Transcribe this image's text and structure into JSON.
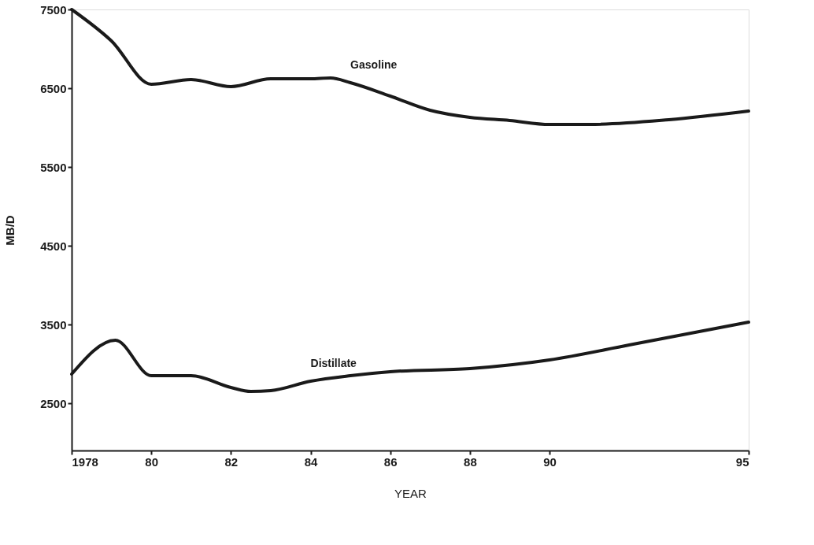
{
  "chart_data": {
    "type": "line",
    "xlabel": "YEAR",
    "ylabel": "MB/D",
    "xlim": [
      1978,
      1995
    ],
    "ylim": [
      1900,
      7500
    ],
    "xticks": [
      1978,
      {
        "value": 1980,
        "label": "80"
      },
      {
        "value": 1982,
        "label": "82"
      },
      {
        "value": 1984,
        "label": "84"
      },
      {
        "value": 1986,
        "label": "86"
      },
      {
        "value": 1988,
        "label": "88"
      },
      {
        "value": 1990,
        "label": "90"
      },
      {
        "value": 1995,
        "label": "95"
      }
    ],
    "yticks": [
      2500,
      3500,
      4500,
      5500,
      6500,
      7500
    ],
    "grid": false,
    "marker": "none",
    "line_style": "solid",
    "series": [
      {
        "name": "Gasoline",
        "color": "#1a1a1a",
        "x": [
          1978,
          1979,
          1980,
          1981,
          1982,
          1983,
          1984,
          1984.5,
          1985,
          1986,
          1987,
          1988,
          1989,
          1990,
          1991,
          1993,
          1995
        ],
        "values": [
          7500,
          7100,
          6550,
          6610,
          6520,
          6620,
          6620,
          6630,
          6570,
          6400,
          6220,
          6130,
          6090,
          6040,
          6040,
          6100,
          6210
        ]
      },
      {
        "name": "Distillate",
        "color": "#1a1a1a",
        "x": [
          1978,
          1979.1,
          1980,
          1981,
          1982,
          1982.5,
          1983,
          1984,
          1985,
          1986,
          1988,
          1990,
          1992,
          1995
        ],
        "values": [
          2870,
          3300,
          2850,
          2850,
          2700,
          2650,
          2660,
          2780,
          2850,
          2900,
          2940,
          3050,
          3240,
          3530
        ]
      }
    ]
  }
}
